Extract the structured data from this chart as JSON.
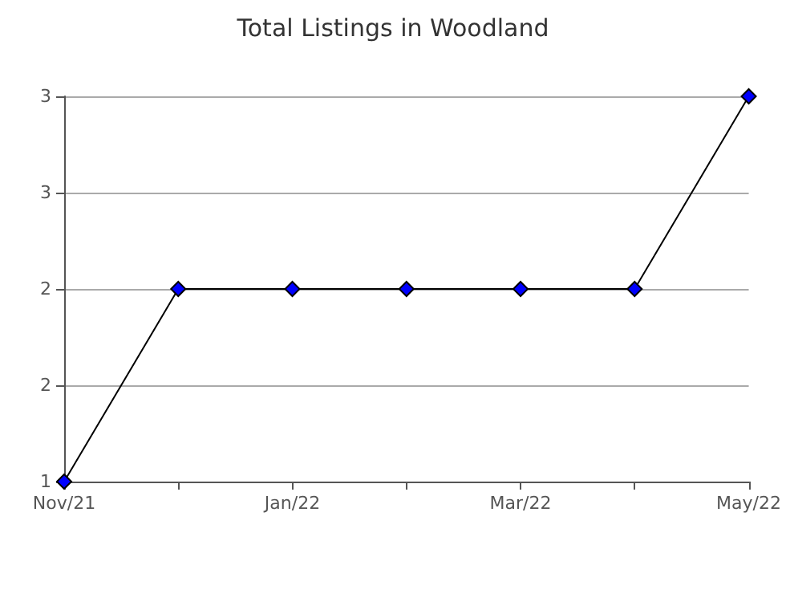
{
  "chart_data": {
    "type": "line",
    "title": "Total Listings in Woodland",
    "categories": [
      "Nov/21",
      null,
      "Jan/22",
      null,
      "Mar/22",
      null,
      "May/22"
    ],
    "series": [
      {
        "color": "#0000ff",
        "values": [
          1,
          2,
          2,
          2,
          2,
          2,
          3
        ]
      }
    ],
    "ylim": [
      1,
      3
    ],
    "yticks": [
      1,
      {
        "value": 1.5,
        "label": "2"
      },
      2,
      {
        "value": 2.5,
        "label": "3"
      },
      3
    ],
    "grid": "y",
    "marker": "diamond",
    "line_style": "solid"
  }
}
